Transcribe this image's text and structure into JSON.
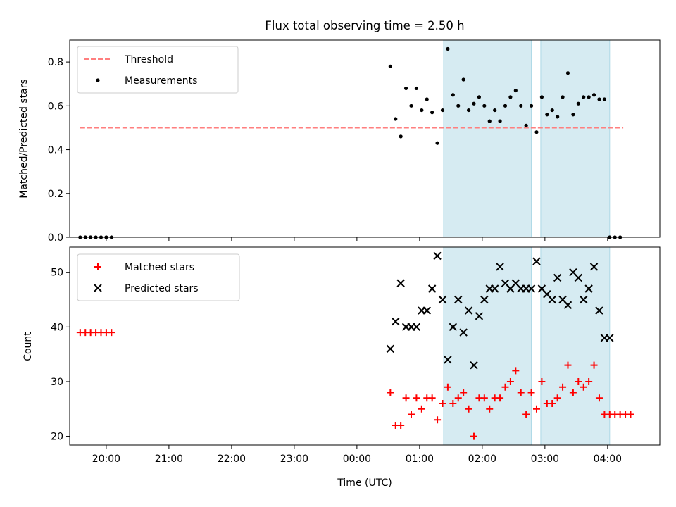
{
  "figure": {
    "title": "Flux total observing time = 2.50 h"
  },
  "chart_data": [
    {
      "type": "scatter",
      "title": "Flux total observing time = 2.50 h",
      "xlabel": "",
      "ylabel": "Matched/Predicted stars",
      "xlim": [
        "19:25",
        "04:50"
      ],
      "ylim": [
        0,
        0.9
      ],
      "yticks": [
        "0.0",
        "0.2",
        "0.4",
        "0.6",
        "0.8"
      ],
      "legend_position": "top-left",
      "shaded_intervals": [
        [
          "01:23",
          "02:47"
        ],
        [
          "02:56",
          "04:02"
        ]
      ],
      "threshold": {
        "name": "Threshold",
        "y": 0.5,
        "x": [
          "19:35",
          "04:15"
        ],
        "color": "#ff7f7f",
        "style": "dashed"
      },
      "series": [
        {
          "name": "Measurements",
          "marker": "dot",
          "color": "#000000",
          "x": [
            "19:35",
            "19:40",
            "19:45",
            "19:50",
            "19:55",
            "20:00",
            "20:05",
            "00:32",
            "00:37",
            "00:42",
            "00:47",
            "00:52",
            "00:57",
            "01:02",
            "01:07",
            "01:12",
            "01:17",
            "01:22",
            "01:27",
            "01:32",
            "01:37",
            "01:42",
            "01:47",
            "01:52",
            "01:57",
            "02:02",
            "02:07",
            "02:12",
            "02:17",
            "02:22",
            "02:27",
            "02:32",
            "02:37",
            "02:42",
            "02:47",
            "02:52",
            "02:57",
            "03:02",
            "03:07",
            "03:12",
            "03:17",
            "03:22",
            "03:27",
            "03:32",
            "03:37",
            "03:42",
            "03:47",
            "03:52",
            "03:57",
            "04:02",
            "04:07",
            "04:12"
          ],
          "y": [
            0,
            0,
            0,
            0,
            0,
            0,
            0,
            0.78,
            0.54,
            0.46,
            0.68,
            0.6,
            0.68,
            0.58,
            0.63,
            0.57,
            0.43,
            0.58,
            0.86,
            0.65,
            0.6,
            0.72,
            0.58,
            0.61,
            0.64,
            0.6,
            0.53,
            0.58,
            0.53,
            0.6,
            0.64,
            0.67,
            0.6,
            0.51,
            0.6,
            0.48,
            0.64,
            0.56,
            0.58,
            0.55,
            0.64,
            0.75,
            0.56,
            0.61,
            0.64,
            0.64,
            0.65,
            0.63,
            0.63,
            0,
            0,
            0
          ]
        }
      ]
    },
    {
      "type": "scatter",
      "title": "",
      "xlabel": "Time (UTC)",
      "ylabel": "Count",
      "xlim": [
        "19:25",
        "04:50"
      ],
      "xticks": [
        "20:00",
        "21:00",
        "22:00",
        "23:00",
        "00:00",
        "01:00",
        "02:00",
        "03:00",
        "04:00"
      ],
      "ylim": [
        18.4,
        54.6
      ],
      "yticks": [
        "20",
        "30",
        "40",
        "50"
      ],
      "legend_position": "top-left",
      "shaded_intervals": [
        [
          "01:23",
          "02:47"
        ],
        [
          "02:56",
          "04:02"
        ]
      ],
      "series": [
        {
          "name": "Matched stars",
          "marker": "plus",
          "color": "#ff0000",
          "x": [
            "19:35",
            "19:40",
            "19:45",
            "19:50",
            "19:55",
            "20:00",
            "20:05",
            "00:32",
            "00:37",
            "00:42",
            "00:47",
            "00:52",
            "00:57",
            "01:02",
            "01:07",
            "01:12",
            "01:17",
            "01:22",
            "01:27",
            "01:32",
            "01:37",
            "01:42",
            "01:47",
            "01:52",
            "01:57",
            "02:02",
            "02:07",
            "02:12",
            "02:17",
            "02:22",
            "02:27",
            "02:32",
            "02:37",
            "02:42",
            "02:47",
            "02:52",
            "02:57",
            "03:02",
            "03:07",
            "03:12",
            "03:17",
            "03:22",
            "03:27",
            "03:32",
            "03:37",
            "03:42",
            "03:47",
            "03:52",
            "03:57",
            "04:02",
            "04:07",
            "04:12",
            "04:17",
            "04:22"
          ],
          "y": [
            39,
            39,
            39,
            39,
            39,
            39,
            39,
            28,
            22,
            22,
            27,
            24,
            27,
            25,
            27,
            27,
            23,
            26,
            29,
            26,
            27,
            28,
            25,
            20,
            27,
            27,
            25,
            27,
            27,
            29,
            30,
            32,
            28,
            24,
            28,
            25,
            30,
            26,
            26,
            27,
            29,
            33,
            28,
            30,
            29,
            30,
            33,
            27,
            24,
            24,
            24,
            24,
            24,
            24
          ]
        },
        {
          "name": "Predicted stars",
          "marker": "x",
          "color": "#000000",
          "x": [
            "00:32",
            "00:37",
            "00:42",
            "00:47",
            "00:52",
            "00:57",
            "01:02",
            "01:07",
            "01:12",
            "01:17",
            "01:22",
            "01:27",
            "01:32",
            "01:37",
            "01:42",
            "01:47",
            "01:52",
            "01:57",
            "02:02",
            "02:07",
            "02:12",
            "02:17",
            "02:22",
            "02:27",
            "02:32",
            "02:37",
            "02:42",
            "02:47",
            "02:52",
            "02:57",
            "03:02",
            "03:07",
            "03:12",
            "03:17",
            "03:22",
            "03:27",
            "03:32",
            "03:37",
            "03:42",
            "03:47",
            "03:52",
            "03:57",
            "04:02"
          ],
          "y": [
            36,
            41,
            48,
            40,
            40,
            40,
            43,
            43,
            47,
            53,
            45,
            34,
            40,
            45,
            39,
            43,
            33,
            42,
            45,
            47,
            47,
            51,
            48,
            47,
            48,
            47,
            47,
            47,
            52,
            47,
            46,
            45,
            49,
            45,
            44,
            50,
            49,
            45,
            47,
            51,
            43,
            38,
            38
          ]
        }
      ]
    }
  ]
}
